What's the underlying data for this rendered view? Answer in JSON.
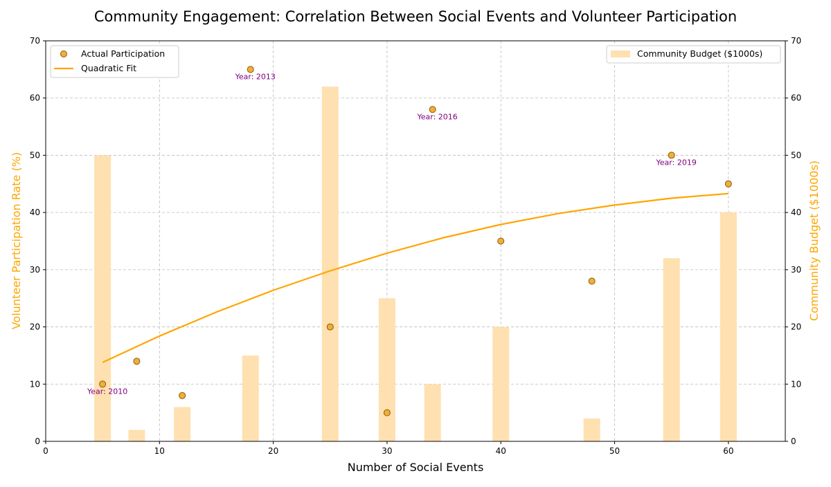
{
  "chart_data": {
    "type": "scatter",
    "title": "Community Engagement: Correlation Between Social Events and Volunteer Participation",
    "xlabel": "Number of Social Events",
    "ylabel": "Volunteer Participation Rate (%)",
    "y2label": "Community Budget ($1000s)",
    "xlim": [
      0,
      65
    ],
    "ylim": [
      0,
      70
    ],
    "y2lim": [
      0,
      70
    ],
    "xticks": [
      "0",
      "10",
      "20",
      "30",
      "40",
      "50",
      "60"
    ],
    "yticks": [
      "0",
      "10",
      "20",
      "30",
      "40",
      "50",
      "60",
      "70"
    ],
    "y2ticks": [
      "0",
      "10",
      "20",
      "30",
      "40",
      "50",
      "60",
      "70"
    ],
    "grid": true,
    "series": [
      {
        "name": "Actual Participation",
        "kind": "scatter",
        "x": [
          5,
          8,
          12,
          18,
          25,
          30,
          34,
          40,
          48,
          55,
          60
        ],
        "y": [
          10,
          14,
          8,
          65,
          20,
          5,
          58,
          35,
          28,
          50,
          45
        ]
      },
      {
        "name": "Quadratic Fit",
        "kind": "line",
        "x": [
          5,
          10,
          15,
          20,
          25,
          30,
          35,
          40,
          45,
          50,
          55,
          60
        ],
        "y": [
          13.8,
          18.4,
          22.6,
          26.4,
          29.8,
          32.9,
          35.6,
          37.9,
          39.8,
          41.3,
          42.5,
          43.3
        ]
      },
      {
        "name": "Community Budget ($1000s)",
        "kind": "bar",
        "axis": "right",
        "x": [
          5,
          8,
          12,
          18,
          25,
          30,
          34,
          40,
          48,
          55,
          60
        ],
        "y": [
          50,
          2,
          6,
          15,
          62,
          25,
          10,
          20,
          4,
          32,
          40
        ]
      }
    ],
    "annotations": [
      {
        "text": "Year: 2010",
        "x": 5,
        "y": 10
      },
      {
        "text": "Year: 2013",
        "x": 18,
        "y": 65
      },
      {
        "text": "Year: 2016",
        "x": 34,
        "y": 58
      },
      {
        "text": "Year: 2019",
        "x": 55,
        "y": 50
      }
    ],
    "legend_left": "upper-left",
    "legend_right": "upper-right",
    "colors": {
      "accent": "#FFA500",
      "bar": "#FFE0B0",
      "point_fill": "#F0AE3C",
      "point_edge": "#8B5A00",
      "annotation": "#800080",
      "grid": "#BBBBBB"
    }
  }
}
